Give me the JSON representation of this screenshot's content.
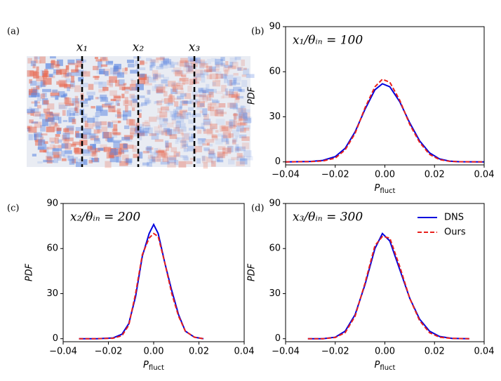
{
  "chart_data": [
    {
      "type": "image",
      "panel_label": "(a)",
      "annotations": [
        "x₁",
        "x₂",
        "x₃"
      ]
    },
    {
      "type": "line",
      "panel_label": "(b)",
      "annotation": "x₁/θᵢₙ = 100",
      "ylabel": "PDF",
      "xlabel": "P",
      "xlabel_subscript": "fluct",
      "x": [
        -0.04,
        -0.03,
        -0.025,
        -0.02,
        -0.016,
        -0.012,
        -0.008,
        -0.004,
        -0.001,
        0.002,
        0.006,
        0.01,
        0.014,
        0.018,
        0.022,
        0.026,
        0.03,
        0.04
      ],
      "series": [
        {
          "name": "DNS",
          "color": "#0000dd",
          "linestyle": "solid",
          "values": [
            0,
            0.3,
            1,
            3.5,
            9,
            20,
            35,
            48,
            52,
            50,
            40,
            26,
            14,
            6,
            2,
            0.5,
            0.1,
            0
          ]
        },
        {
          "name": "Ours",
          "color": "#e8201c",
          "linestyle": "dashed",
          "values": [
            0,
            0.2,
            0.6,
            2.5,
            8,
            19,
            36,
            50,
            55,
            53,
            41,
            25,
            13,
            5,
            1.5,
            0.4,
            0.1,
            0
          ]
        }
      ],
      "xlim": [
        -0.04,
        0.04
      ],
      "xticks": [
        {
          "value": -0.04,
          "label": "−0.04"
        },
        {
          "value": -0.02,
          "label": "−0.02"
        },
        {
          "value": 0,
          "label": "0.00"
        },
        0.02,
        0.04
      ],
      "ylim": [
        -2,
        90
      ],
      "yticks": [
        0,
        30,
        60,
        90
      ],
      "legend": false
    },
    {
      "type": "line",
      "panel_label": "(c)",
      "annotation": "x₂/θᵢₙ = 200",
      "ylabel": "PDF",
      "xlabel": "P",
      "xlabel_subscript": "fluct",
      "x": [
        -0.033,
        -0.025,
        -0.018,
        -0.014,
        -0.011,
        -0.008,
        -0.005,
        -0.002,
        0,
        0.002,
        0.005,
        0.008,
        0.011,
        0.014,
        0.018,
        0.022
      ],
      "series": [
        {
          "name": "DNS",
          "color": "#0000dd",
          "linestyle": "solid",
          "values": [
            0,
            0,
            0.5,
            3,
            10,
            28,
            55,
            70,
            76,
            70,
            50,
            32,
            16,
            5,
            1,
            0
          ]
        },
        {
          "name": "Ours",
          "color": "#e8201c",
          "linestyle": "dashed",
          "values": [
            0,
            0,
            0.3,
            2,
            9,
            30,
            56,
            67,
            70,
            68,
            50,
            30,
            15,
            5,
            1,
            0
          ]
        }
      ],
      "xlim": [
        -0.04,
        0.04
      ],
      "xticks": [
        {
          "value": -0.04,
          "label": "−0.04"
        },
        {
          "value": -0.02,
          "label": "−0.02"
        },
        {
          "value": 0,
          "label": "0.00"
        },
        0.02,
        0.04
      ],
      "ylim": [
        -2,
        90
      ],
      "yticks": [
        0,
        30,
        60,
        90
      ],
      "legend": false
    },
    {
      "type": "line",
      "panel_label": "(d)",
      "annotation": "x₃/θᵢₙ = 300",
      "ylabel": "PDF",
      "xlabel": "P",
      "xlabel_subscript": "fluct",
      "x": [
        -0.031,
        -0.025,
        -0.02,
        -0.016,
        -0.012,
        -0.008,
        -0.004,
        -0.001,
        0.002,
        0.006,
        0.01,
        0.014,
        0.018,
        0.022,
        0.027,
        0.034
      ],
      "series": [
        {
          "name": "DNS",
          "color": "#0000dd",
          "linestyle": "solid",
          "values": [
            0,
            0,
            1,
            5,
            16,
            36,
            60,
            70,
            65,
            46,
            27,
            13,
            5,
            1.5,
            0.2,
            0
          ]
        },
        {
          "name": "Ours",
          "color": "#e8201c",
          "linestyle": "dashed",
          "values": [
            0,
            0,
            0.8,
            4,
            15,
            37,
            62,
            68,
            67,
            48,
            27,
            12,
            4,
            1,
            0.2,
            0
          ]
        }
      ],
      "xlim": [
        -0.04,
        0.04
      ],
      "xticks": [
        {
          "value": -0.04,
          "label": "−0.04"
        },
        {
          "value": -0.02,
          "label": "−0.02"
        },
        {
          "value": 0,
          "label": "0.00"
        },
        0.02,
        0.04
      ],
      "ylim": [
        -2,
        90
      ],
      "yticks": [
        0,
        30,
        60,
        90
      ],
      "legend": "upper right"
    }
  ]
}
